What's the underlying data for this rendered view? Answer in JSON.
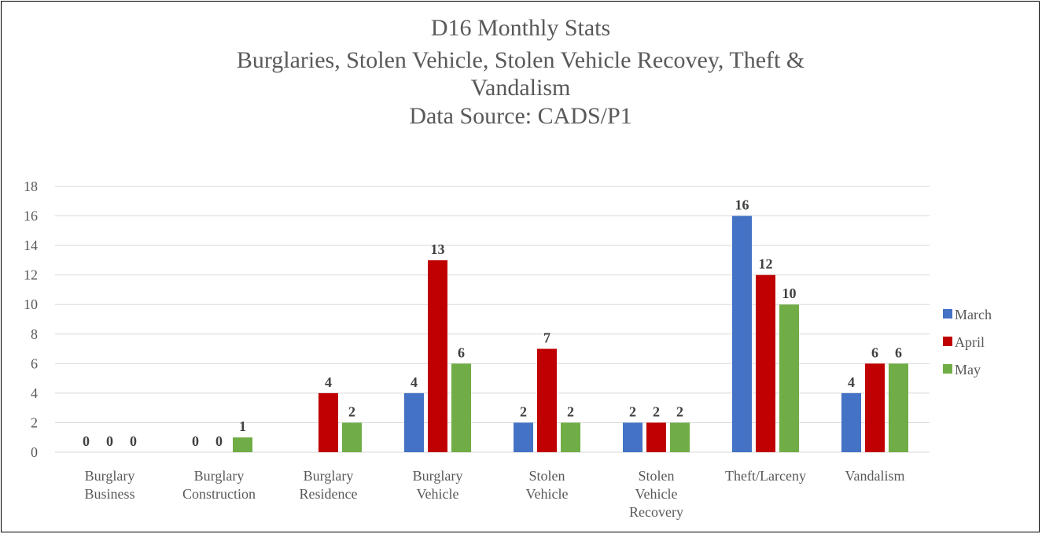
{
  "chart_data": {
    "type": "bar",
    "title_lines": [
      "D16 Monthly Stats",
      "Burglaries, Stolen Vehicle, Stolen Vehicle Recovey, Theft &",
      "Vandalism",
      "Data Source: CADS/P1"
    ],
    "categories": [
      [
        "Burglary",
        "Business"
      ],
      [
        "Burglary",
        "Construction"
      ],
      [
        "Burglary",
        "Residence"
      ],
      [
        "Burglary",
        "Vehicle"
      ],
      [
        "Stolen",
        "Vehicle"
      ],
      [
        "Stolen",
        "Vehicle",
        "Recovery"
      ],
      [
        "Theft/Larceny"
      ],
      [
        "Vandalism"
      ]
    ],
    "series": [
      {
        "name": "March",
        "color": "#4472c4",
        "values": [
          0,
          0,
          null,
          4,
          2,
          2,
          16,
          4
        ]
      },
      {
        "name": "April",
        "color": "#c00000",
        "values": [
          0,
          0,
          4,
          13,
          7,
          2,
          12,
          6
        ]
      },
      {
        "name": "May",
        "color": "#70ad47",
        "values": [
          0,
          1,
          2,
          6,
          2,
          2,
          10,
          6
        ]
      }
    ],
    "data_labels": [
      [
        "0",
        "0",
        "",
        "4",
        "2",
        "2",
        "16",
        "4"
      ],
      [
        "0",
        "0",
        "4",
        "13",
        "7",
        "2",
        "12",
        "6"
      ],
      [
        "0",
        "1",
        "2",
        "6",
        "2",
        "2",
        "10",
        "6"
      ]
    ],
    "ylim": [
      0,
      18
    ],
    "yticks": [
      "0",
      "2",
      "4",
      "6",
      "8",
      "10",
      "12",
      "14",
      "16",
      "18"
    ],
    "grid": true,
    "legend_position": "right",
    "xlabel": "",
    "ylabel": ""
  }
}
